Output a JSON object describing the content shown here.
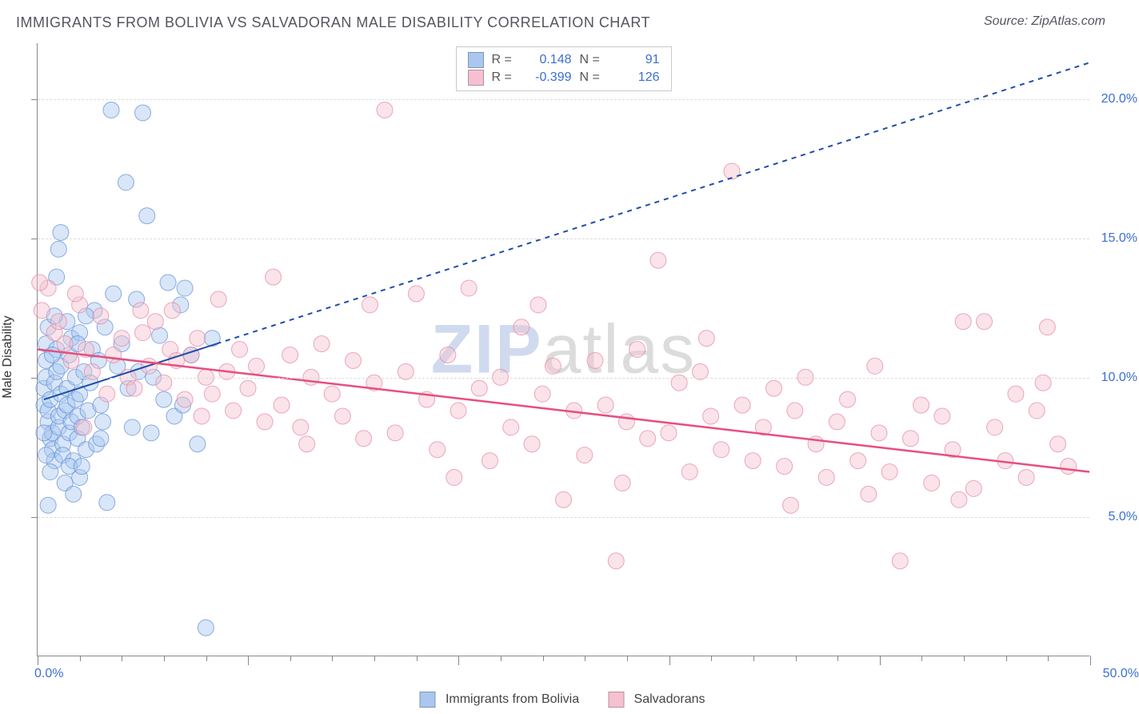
{
  "title": "IMMIGRANTS FROM BOLIVIA VS SALVADORAN MALE DISABILITY CORRELATION CHART",
  "source": "Source: ZipAtlas.com",
  "watermark": {
    "left": "ZIP",
    "right": "atlas"
  },
  "chart": {
    "type": "scatter",
    "ylabel": "Male Disability",
    "xlim": [
      0,
      50
    ],
    "ylim": [
      0,
      22
    ],
    "x_ticks_minor_step": 2,
    "x_ticks_major": [
      0,
      10,
      20,
      30,
      40,
      50
    ],
    "y_gridlines": [
      5,
      10,
      15,
      20
    ],
    "y_tick_labels": [
      "5.0%",
      "10.0%",
      "15.0%",
      "20.0%"
    ],
    "x_min_label": "0.0%",
    "x_max_label": "50.0%",
    "background_color": "#ffffff",
    "grid_color": "#dcdcdc",
    "axis_color": "#888888",
    "tick_label_color": "#3b6fd6",
    "marker_radius": 10,
    "marker_opacity": 0.45,
    "series": [
      {
        "name": "Immigrants from Bolivia",
        "color_fill": "#a9c7f0",
        "color_stroke": "#5f8cd6",
        "swatch_color": "#a9c7f0",
        "R": "0.148",
        "N": "91",
        "trend": {
          "solid": {
            "x1": 0.3,
            "y1": 9.2,
            "x2": 8.5,
            "y2": 11.2
          },
          "dashed": {
            "x1": 8.5,
            "y1": 11.2,
            "x2": 50,
            "y2": 21.3
          },
          "stroke": "#1f4da8",
          "width": 2,
          "dash": "6 6"
        },
        "points": [
          [
            0.3,
            9.0
          ],
          [
            0.3,
            9.6
          ],
          [
            0.4,
            10.0
          ],
          [
            0.4,
            10.6
          ],
          [
            0.4,
            11.2
          ],
          [
            0.5,
            11.8
          ],
          [
            0.5,
            8.4
          ],
          [
            0.5,
            8.8
          ],
          [
            0.6,
            9.2
          ],
          [
            0.6,
            7.8
          ],
          [
            0.7,
            8.0
          ],
          [
            0.7,
            7.4
          ],
          [
            0.8,
            7.0
          ],
          [
            0.8,
            9.8
          ],
          [
            0.9,
            10.2
          ],
          [
            0.9,
            11.0
          ],
          [
            1.0,
            8.2
          ],
          [
            1.0,
            8.6
          ],
          [
            1.1,
            9.4
          ],
          [
            1.1,
            10.4
          ],
          [
            1.2,
            7.6
          ],
          [
            1.2,
            7.2
          ],
          [
            1.3,
            6.2
          ],
          [
            1.3,
            8.8
          ],
          [
            1.4,
            9.0
          ],
          [
            1.4,
            9.6
          ],
          [
            1.5,
            10.8
          ],
          [
            1.5,
            8.0
          ],
          [
            1.6,
            8.4
          ],
          [
            1.6,
            11.4
          ],
          [
            1.7,
            7.0
          ],
          [
            1.7,
            5.8
          ],
          [
            1.8,
            9.2
          ],
          [
            1.8,
            10.0
          ],
          [
            1.9,
            7.8
          ],
          [
            1.9,
            8.6
          ],
          [
            2.0,
            11.6
          ],
          [
            2.0,
            9.4
          ],
          [
            2.1,
            8.2
          ],
          [
            2.2,
            10.2
          ],
          [
            2.3,
            7.4
          ],
          [
            2.4,
            8.8
          ],
          [
            2.5,
            9.8
          ],
          [
            2.6,
            11.0
          ],
          [
            2.8,
            7.6
          ],
          [
            2.9,
            10.6
          ],
          [
            3.0,
            9.0
          ],
          [
            3.1,
            8.4
          ],
          [
            3.3,
            5.5
          ],
          [
            3.5,
            19.6
          ],
          [
            3.6,
            13.0
          ],
          [
            3.8,
            10.4
          ],
          [
            4.0,
            11.2
          ],
          [
            4.2,
            17.0
          ],
          [
            4.3,
            9.6
          ],
          [
            4.5,
            8.2
          ],
          [
            4.7,
            12.8
          ],
          [
            5.0,
            19.5
          ],
          [
            5.2,
            15.8
          ],
          [
            5.5,
            10.0
          ],
          [
            5.8,
            11.5
          ],
          [
            6.0,
            9.2
          ],
          [
            6.2,
            13.4
          ],
          [
            6.5,
            8.6
          ],
          [
            6.8,
            12.6
          ],
          [
            7.0,
            13.2
          ],
          [
            7.3,
            10.8
          ],
          [
            7.6,
            7.6
          ],
          [
            8.0,
            1.0
          ],
          [
            8.3,
            11.4
          ],
          [
            1.0,
            14.6
          ],
          [
            1.1,
            15.2
          ],
          [
            2.0,
            6.4
          ],
          [
            0.5,
            5.4
          ],
          [
            0.6,
            6.6
          ],
          [
            1.4,
            12.0
          ],
          [
            0.8,
            12.2
          ],
          [
            0.9,
            13.6
          ],
          [
            3.2,
            11.8
          ],
          [
            2.7,
            12.4
          ],
          [
            1.5,
            6.8
          ],
          [
            2.3,
            12.2
          ],
          [
            0.4,
            7.2
          ],
          [
            0.3,
            8.0
          ],
          [
            0.7,
            10.8
          ],
          [
            1.9,
            11.2
          ],
          [
            2.1,
            6.8
          ],
          [
            3.0,
            7.8
          ],
          [
            4.8,
            10.2
          ],
          [
            5.4,
            8.0
          ],
          [
            6.9,
            9.0
          ]
        ]
      },
      {
        "name": "Salvadorans",
        "color_fill": "#f5c0cf",
        "color_stroke": "#e385a3",
        "swatch_color": "#f5c0cf",
        "R": "-0.399",
        "N": "126",
        "trend": {
          "solid": {
            "x1": 0,
            "y1": 11.0,
            "x2": 50,
            "y2": 6.6
          },
          "stroke": "#e84e7e",
          "width": 2.5
        },
        "points": [
          [
            0.2,
            12.4
          ],
          [
            0.5,
            13.2
          ],
          [
            0.8,
            11.6
          ],
          [
            1.0,
            12.0
          ],
          [
            1.3,
            11.2
          ],
          [
            1.6,
            10.6
          ],
          [
            2.0,
            12.6
          ],
          [
            2.3,
            11.0
          ],
          [
            2.6,
            10.2
          ],
          [
            3.0,
            12.2
          ],
          [
            3.3,
            9.4
          ],
          [
            3.6,
            10.8
          ],
          [
            4.0,
            11.4
          ],
          [
            4.3,
            10.0
          ],
          [
            4.6,
            9.6
          ],
          [
            5.0,
            11.6
          ],
          [
            5.3,
            10.4
          ],
          [
            5.6,
            12.0
          ],
          [
            6.0,
            9.8
          ],
          [
            6.3,
            11.0
          ],
          [
            6.6,
            10.6
          ],
          [
            7.0,
            9.2
          ],
          [
            7.3,
            10.8
          ],
          [
            7.6,
            11.4
          ],
          [
            8.0,
            10.0
          ],
          [
            8.3,
            9.4
          ],
          [
            8.6,
            12.8
          ],
          [
            9.0,
            10.2
          ],
          [
            9.3,
            8.8
          ],
          [
            9.6,
            11.0
          ],
          [
            10.0,
            9.6
          ],
          [
            10.4,
            10.4
          ],
          [
            10.8,
            8.4
          ],
          [
            11.2,
            13.6
          ],
          [
            11.6,
            9.0
          ],
          [
            12.0,
            10.8
          ],
          [
            12.5,
            8.2
          ],
          [
            13.0,
            10.0
          ],
          [
            13.5,
            11.2
          ],
          [
            14.0,
            9.4
          ],
          [
            14.5,
            8.6
          ],
          [
            15.0,
            10.6
          ],
          [
            15.5,
            7.8
          ],
          [
            16.0,
            9.8
          ],
          [
            16.5,
            19.6
          ],
          [
            17.0,
            8.0
          ],
          [
            17.5,
            10.2
          ],
          [
            18.0,
            13.0
          ],
          [
            18.5,
            9.2
          ],
          [
            19.0,
            7.4
          ],
          [
            19.5,
            10.8
          ],
          [
            20.0,
            8.8
          ],
          [
            20.5,
            13.2
          ],
          [
            21.0,
            9.6
          ],
          [
            21.5,
            7.0
          ],
          [
            22.0,
            10.0
          ],
          [
            22.5,
            8.2
          ],
          [
            23.0,
            11.8
          ],
          [
            23.5,
            7.6
          ],
          [
            24.0,
            9.4
          ],
          [
            24.5,
            10.4
          ],
          [
            25.0,
            5.6
          ],
          [
            25.5,
            8.8
          ],
          [
            26.0,
            7.2
          ],
          [
            26.5,
            10.6
          ],
          [
            27.0,
            9.0
          ],
          [
            27.5,
            3.4
          ],
          [
            28.0,
            8.4
          ],
          [
            28.5,
            11.0
          ],
          [
            29.0,
            7.8
          ],
          [
            29.5,
            14.2
          ],
          [
            30.0,
            8.0
          ],
          [
            30.5,
            9.8
          ],
          [
            31.0,
            6.6
          ],
          [
            31.5,
            10.2
          ],
          [
            32.0,
            8.6
          ],
          [
            32.5,
            7.4
          ],
          [
            33.0,
            17.4
          ],
          [
            33.5,
            9.0
          ],
          [
            34.0,
            7.0
          ],
          [
            34.5,
            8.2
          ],
          [
            35.0,
            9.6
          ],
          [
            35.5,
            6.8
          ],
          [
            36.0,
            8.8
          ],
          [
            36.5,
            10.0
          ],
          [
            37.0,
            7.6
          ],
          [
            37.5,
            6.4
          ],
          [
            38.0,
            8.4
          ],
          [
            38.5,
            9.2
          ],
          [
            39.0,
            7.0
          ],
          [
            39.5,
            5.8
          ],
          [
            40.0,
            8.0
          ],
          [
            40.5,
            6.6
          ],
          [
            41.0,
            3.4
          ],
          [
            41.5,
            7.8
          ],
          [
            42.0,
            9.0
          ],
          [
            42.5,
            6.2
          ],
          [
            43.0,
            8.6
          ],
          [
            43.5,
            7.4
          ],
          [
            44.0,
            12.0
          ],
          [
            44.5,
            6.0
          ],
          [
            45.0,
            12.0
          ],
          [
            45.5,
            8.2
          ],
          [
            46.0,
            7.0
          ],
          [
            46.5,
            9.4
          ],
          [
            47.0,
            6.4
          ],
          [
            47.5,
            8.8
          ],
          [
            48.0,
            11.8
          ],
          [
            48.5,
            7.6
          ],
          [
            49.0,
            6.8
          ],
          [
            0.1,
            13.4
          ],
          [
            1.8,
            13.0
          ],
          [
            4.9,
            12.4
          ],
          [
            7.8,
            8.6
          ],
          [
            12.8,
            7.6
          ],
          [
            15.8,
            12.6
          ],
          [
            19.8,
            6.4
          ],
          [
            23.8,
            12.6
          ],
          [
            27.8,
            6.2
          ],
          [
            31.8,
            11.4
          ],
          [
            35.8,
            5.4
          ],
          [
            39.8,
            10.4
          ],
          [
            43.8,
            5.6
          ],
          [
            47.8,
            9.8
          ],
          [
            2.2,
            8.2
          ],
          [
            6.4,
            12.4
          ]
        ]
      }
    ],
    "bottom_legend": [
      {
        "label": "Immigrants from Bolivia",
        "swatch": "#a9c7f0"
      },
      {
        "label": "Salvadorans",
        "swatch": "#f5c0cf"
      }
    ]
  }
}
